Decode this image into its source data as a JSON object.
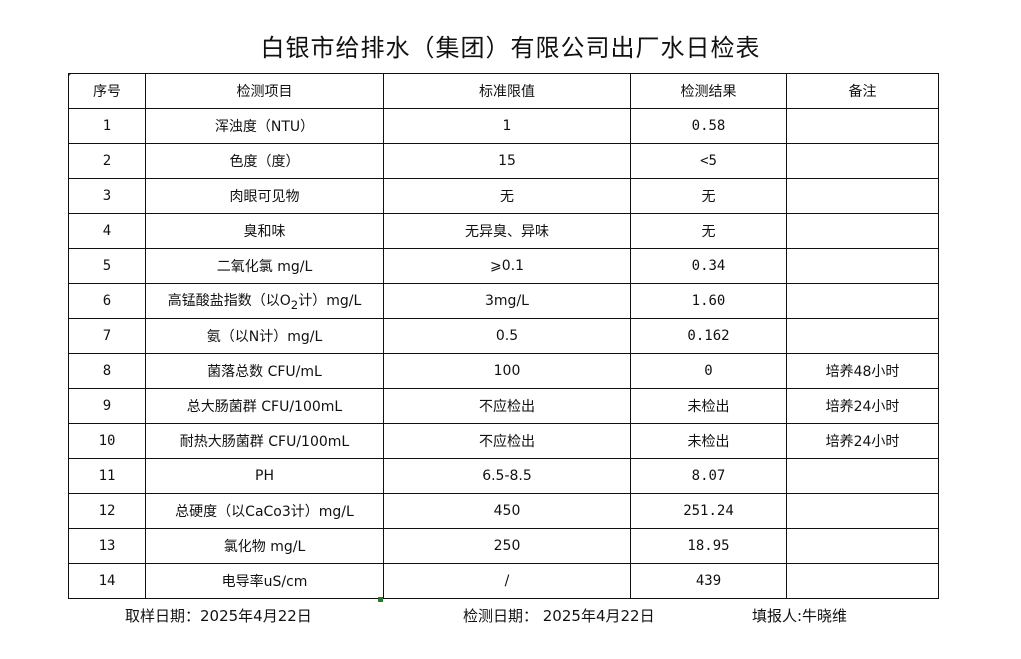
{
  "title": "白银市给排水（集团）有限公司出厂水日检表",
  "headers": [
    "序号",
    "检测项目",
    "标准限值",
    "检测结果",
    "备注"
  ],
  "rows": [
    {
      "no": "1",
      "item": "浑浊度（NTU）",
      "limit": "1",
      "result": "0.58",
      "note": ""
    },
    {
      "no": "2",
      "item": "色度（度）",
      "limit": "15",
      "result": "<5",
      "note": ""
    },
    {
      "no": "3",
      "item": "肉眼可见物",
      "limit": "无",
      "result": "无",
      "note": ""
    },
    {
      "no": "4",
      "item": "臭和味",
      "limit": "无异臭、异味",
      "result": "无",
      "note": ""
    },
    {
      "no": "5",
      "item": "二氧化氯 mg/L",
      "limit": "⩾0.1",
      "result": "0.34",
      "note": ""
    },
    {
      "no": "6",
      "item_pre": "高锰酸盐指数（以O",
      "item_sub": "2",
      "item_post": "计）mg/L",
      "limit": "3mg/L",
      "result": "1.60",
      "note": ""
    },
    {
      "no": "7",
      "item": "氨（以N计）mg/L",
      "limit": "0.5",
      "result": "0.162",
      "note": ""
    },
    {
      "no": "8",
      "item": "菌落总数 CFU/mL",
      "limit": "100",
      "result": "0",
      "note": "培养48小时"
    },
    {
      "no": "9",
      "item": "总大肠菌群 CFU/100mL",
      "limit": "不应检出",
      "result": "未检出",
      "note": "培养24小时"
    },
    {
      "no": "10",
      "item": "耐热大肠菌群 CFU/100mL",
      "limit": "不应检出",
      "result": "未检出",
      "note": "培养24小时"
    },
    {
      "no": "11",
      "item": "PH",
      "limit": "6.5-8.5",
      "result": "8.07",
      "note": ""
    },
    {
      "no": "12",
      "item": "总硬度（以CaCo3计）mg/L",
      "limit": "450",
      "result": "251.24",
      "note": ""
    },
    {
      "no": "13",
      "item": "氯化物 mg/L",
      "limit": "250",
      "result": "18.95",
      "note": ""
    },
    {
      "no": "14",
      "item": "电导率uS/cm",
      "limit": "/",
      "result": "439",
      "note": ""
    }
  ],
  "footer": {
    "sample_date": "取样日期：2025年4月22日",
    "test_date": "检测日期： 2025年4月22日",
    "reporter": "填报人:牛晓维"
  }
}
